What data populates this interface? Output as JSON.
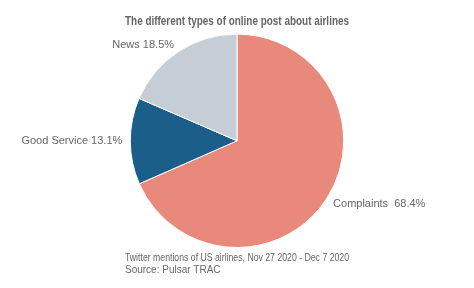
{
  "chart_data": {
    "type": "pie",
    "title": "The different types of online post about airlines",
    "categories": [
      "Complaints",
      "Good Service",
      "News"
    ],
    "values": [
      68.4,
      13.1,
      18.5
    ],
    "value_labels": [
      "Complaints  68.4%",
      "Good Service 13.1%",
      "News 18.5%"
    ],
    "data_labels": true,
    "colors": [
      "#E8897B",
      "#1B5E8A",
      "#C5CDD6"
    ],
    "annotations": [
      "Twitter mentions of US airlines, Nov 27 2020 - Dec 7 2020",
      "Source: Pulsar TRAC"
    ],
    "legend": false
  }
}
